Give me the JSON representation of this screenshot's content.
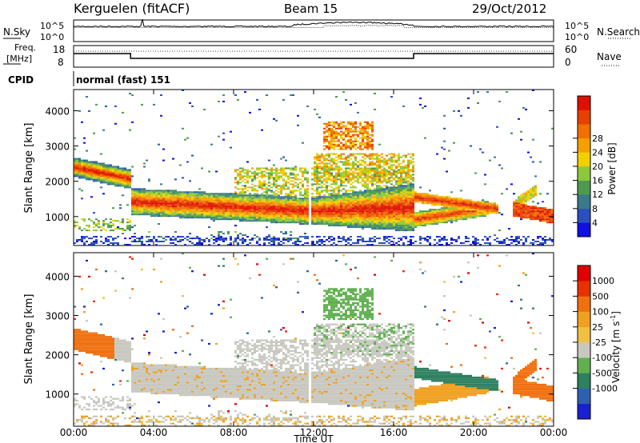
{
  "header": {
    "station": "Kerguelen (fitACF)",
    "beam": "Beam 15",
    "date": "29/Oct/2012"
  },
  "top_panels": {
    "nsky_label": "N.Sky",
    "nsky_ticks": [
      "10^5",
      "10^0"
    ],
    "nsearch_label": "N.Search",
    "nsearch_ticks": [
      "10^5",
      "10^0"
    ],
    "freq_label_1": "Freq.",
    "freq_label_2": "[MHz]",
    "freq_ticks": [
      "18",
      "8"
    ],
    "nave_label": "Nave",
    "nave_ticks": [
      "60",
      "0"
    ],
    "cpid_label": "CPID",
    "cpid_value": "normal (fast) 151"
  },
  "chart_data": [
    {
      "type": "heatmap",
      "name": "power",
      "ylabel": "Slant Range [km]",
      "xlabel": "Time UT",
      "xlim": [
        "00:00",
        "24:00"
      ],
      "ylim": [
        180,
        4600
      ],
      "y_ticks": [
        "1000",
        "2000",
        "3000",
        "4000"
      ],
      "x_ticks": [
        "00:00",
        "04:00",
        "08:00",
        "12:00",
        "16:00",
        "20:00",
        "00:00"
      ],
      "colorbar": {
        "label": "Power [dB]",
        "ticks": [
          "4",
          "8",
          "12",
          "16",
          "20",
          "24",
          "28"
        ],
        "colors": [
          "#1010e0",
          "#2a50c0",
          "#3a7a8a",
          "#4e9a50",
          "#8cc83c",
          "#f0d000",
          "#f5a000",
          "#f07000",
          "#e84000",
          "#e01000"
        ]
      }
    },
    {
      "type": "heatmap",
      "name": "velocity",
      "ylabel": "Slant Range [km]",
      "xlabel": "Time UT",
      "xlim": [
        "00:00",
        "24:00"
      ],
      "ylim": [
        180,
        4600
      ],
      "y_ticks": [
        "1000",
        "2000",
        "3000",
        "4000"
      ],
      "x_ticks": [
        "00:00",
        "04:00",
        "08:00",
        "12:00",
        "16:00",
        "20:00",
        "00:00"
      ],
      "colorbar": {
        "label_main": "Velocity [m s",
        "label_exp": "-1",
        "label_close": "]",
        "ticks": [
          "1000",
          "500",
          "100",
          "25",
          "-25",
          "-100",
          "-500",
          "-1000"
        ],
        "colors": [
          "#1a20d0",
          "#2e60b0",
          "#2e8060",
          "#60b050",
          "#c8c8c0",
          "#f0c040",
          "#f0a020",
          "#f07010",
          "#e83000",
          "#e00000"
        ]
      }
    }
  ]
}
